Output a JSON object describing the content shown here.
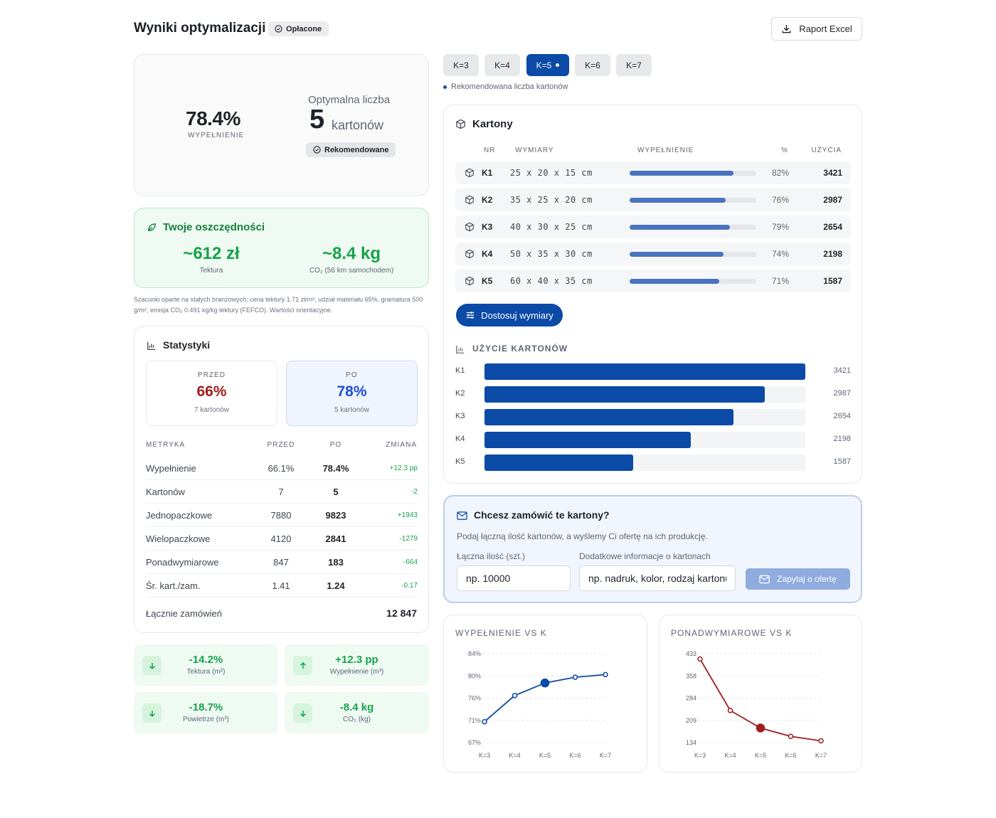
{
  "header": {
    "title": "Wyniki optymalizacji",
    "badge": "Opłacone",
    "excel_label": "Raport Excel"
  },
  "summary": {
    "fill_value": "78.4%",
    "fill_label": "WYPEŁNIENIE",
    "optimal_label": "Optymalna liczba",
    "optimal_count": "5",
    "optimal_unit": "kartonów",
    "recommended_badge": "Rekomendowane"
  },
  "savings": {
    "title": "Twoje oszczędności",
    "items": [
      {
        "value": "~612 zł",
        "label": "Tektura"
      },
      {
        "value": "~8.4 kg",
        "label": "CO₂ (56 km samochodem)"
      }
    ],
    "note": "Szacunki oparte na stałych branżowych: cena tektury 1.71 zł/m², udział materiału 65%, gramatura 500 g/m², emisja CO₂ 0.491 kg/kg tektury (FEFCO). Wartości orientacyjne."
  },
  "stats": {
    "title": "Statystyki",
    "before": {
      "label": "PRZED",
      "value": "66%",
      "sub": "7 kartonów"
    },
    "after": {
      "label": "PO",
      "value": "78%",
      "sub": "5 kartonów"
    },
    "headers": [
      "METRYKA",
      "PRZED",
      "PO",
      "ZMIANA"
    ],
    "rows": [
      {
        "name": "Wypełnienie",
        "before": "66.1%",
        "after": "78.4%",
        "change": "+12.3 pp"
      },
      {
        "name": "Kartonów",
        "before": "7",
        "after": "5",
        "change": "-2"
      },
      {
        "name": "Jednopaczkowe",
        "before": "7880",
        "after": "9823",
        "change": "+1943"
      },
      {
        "name": "Wielopaczkowe",
        "before": "4120",
        "after": "2841",
        "change": "-1279"
      },
      {
        "name": "Ponadwymiarowe",
        "before": "847",
        "after": "183",
        "change": "-664"
      },
      {
        "name": "Śr. kart./zam.",
        "before": "1.41",
        "after": "1.24",
        "change": "-0.17"
      }
    ],
    "total_label": "Łącznie zamówień",
    "total_value": "12 847"
  },
  "deltas": [
    {
      "value": "-14.2%",
      "label": "Tektura (m²)",
      "dir": "down"
    },
    {
      "value": "+12.3 pp",
      "label": "Wypełnienie (m³)",
      "dir": "up"
    },
    {
      "value": "-18.7%",
      "label": "Powietrze (m³)",
      "dir": "down"
    },
    {
      "value": "-8.4 kg",
      "label": "CO₂ (kg)",
      "dir": "down"
    }
  ],
  "k_tabs": [
    "K=3",
    "K=4",
    "K=5",
    "K=6",
    "K=7"
  ],
  "k_active": "K=5",
  "recommended_note": "Rekomendowana liczba kartonów",
  "cartons": {
    "title": "Kartony",
    "headers": [
      "NR",
      "WYMIARY",
      "WYPEŁNIENIE",
      "%",
      "UŻYCIA"
    ],
    "rows": [
      {
        "nr": "K1",
        "dims": "25 x 20 x 15 cm",
        "pct": "82%",
        "fill": 0.82,
        "uses": "3421"
      },
      {
        "nr": "K2",
        "dims": "35 x 25 x 20 cm",
        "pct": "76%",
        "fill": 0.76,
        "uses": "2987"
      },
      {
        "nr": "K3",
        "dims": "40 x 30 x 25 cm",
        "pct": "79%",
        "fill": 0.79,
        "uses": "2654"
      },
      {
        "nr": "K4",
        "dims": "50 x 35 x 30 cm",
        "pct": "74%",
        "fill": 0.74,
        "uses": "2198"
      },
      {
        "nr": "K5",
        "dims": "60 x 40 x 35 cm",
        "pct": "71%",
        "fill": 0.71,
        "uses": "1587"
      }
    ],
    "adjust_label": "Dostosuj wymiary",
    "usage_title": "UŻYCIE KARTONÓW"
  },
  "order": {
    "title": "Chcesz zamówić te kartony?",
    "subtitle": "Podaj łączną ilość kartonów, a wyślemy Ci ofertę na ich produkcję.",
    "qty_label": "Łączna ilość (szt.)",
    "qty_placeholder": "np. 10000",
    "info_label": "Dodatkowe informacje o kartonach",
    "info_placeholder": "np. nadruk, kolor, rodzaj kartonu...",
    "submit_label": "Zapytaj o ofertę"
  },
  "chart_data": [
    {
      "type": "bar",
      "title": "UŻYCIE KARTONÓW",
      "categories": [
        "K1",
        "K2",
        "K3",
        "K4",
        "K5"
      ],
      "values": [
        3421,
        2987,
        2654,
        2198,
        1587
      ],
      "ylim": [
        0,
        3421
      ]
    },
    {
      "type": "line",
      "title": "WYPEŁNIENIE VS K",
      "categories": [
        "K=3",
        "K=4",
        "K=5",
        "K=6",
        "K=7"
      ],
      "values": [
        71,
        76,
        78.4,
        79.5,
        80
      ],
      "ytick_labels": [
        "84%",
        "80%",
        "76%",
        "71%",
        "67%"
      ],
      "ylim": [
        67,
        84
      ],
      "highlight": "K=5",
      "color": "#0b4aa6"
    },
    {
      "type": "line",
      "title": "PONADWYMIAROWE VS K",
      "categories": [
        "K=3",
        "K=4",
        "K=5",
        "K=6",
        "K=7"
      ],
      "values": [
        415,
        242,
        183,
        155,
        140
      ],
      "ytick_labels": [
        "433",
        "358",
        "284",
        "209",
        "134"
      ],
      "ylim": [
        134,
        433
      ],
      "highlight": "K=5",
      "color": "#a11d1d"
    }
  ]
}
